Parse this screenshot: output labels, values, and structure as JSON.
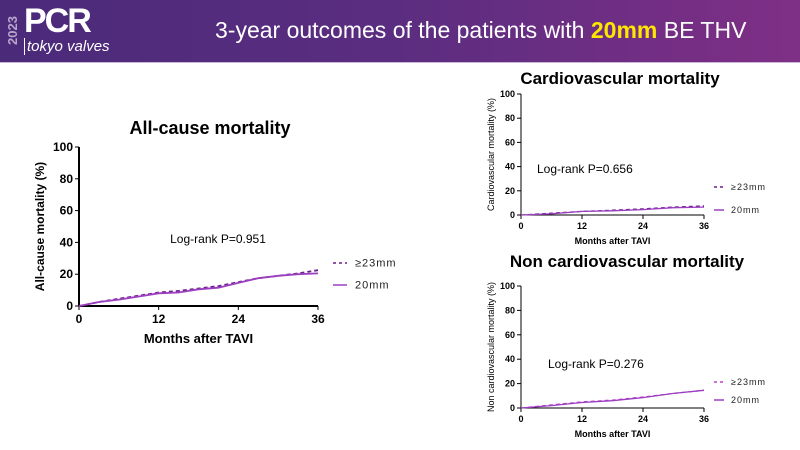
{
  "header": {
    "year": "2023",
    "logo": "PCR",
    "logo_sub": "tokyo valves",
    "title_pre": "3-year outcomes of the patients with ",
    "title_highlight": "20mm",
    "title_post": " BE THV",
    "highlight_color": "#ffe600"
  },
  "chart_data": [
    {
      "type": "line",
      "title": "All-cause mortality",
      "xlabel": "Months after TAVI",
      "ylabel": "All-cause mortality (%)",
      "xlim": [
        0,
        36
      ],
      "ylim": [
        0,
        100
      ],
      "xticks": [
        0,
        12,
        24,
        36
      ],
      "yticks": [
        0,
        20,
        40,
        60,
        80,
        100
      ],
      "annotation": "Log-rank P=0.951",
      "legend": "right",
      "series": [
        {
          "name": "≥23mm",
          "style": "dashed",
          "color": "#6a1f8a",
          "x": [
            0,
            3,
            6,
            9,
            12,
            15,
            18,
            21,
            24,
            27,
            30,
            33,
            36
          ],
          "y": [
            0,
            2.5,
            4.5,
            6.5,
            8.5,
            9.5,
            11,
            12.5,
            15,
            17.5,
            19,
            20.5,
            22.5
          ]
        },
        {
          "name": "20mm",
          "style": "solid",
          "color": "#9b3fc0",
          "x": [
            0,
            3,
            6,
            9,
            12,
            15,
            18,
            21,
            24,
            27,
            30,
            33,
            36
          ],
          "y": [
            0,
            2.5,
            4,
            6,
            8,
            8.5,
            10.5,
            11.5,
            14.5,
            17.5,
            19,
            20,
            20.5
          ]
        }
      ]
    },
    {
      "type": "line",
      "title": "Cardiovascular mortality",
      "xlabel": "Months after TAVI",
      "ylabel": "Cardiovascular mortality (%)",
      "xlim": [
        0,
        36
      ],
      "ylim": [
        0,
        100
      ],
      "xticks": [
        0,
        12,
        24,
        36
      ],
      "yticks": [
        0,
        20,
        40,
        60,
        80,
        100
      ],
      "annotation": "Log-rank P=0.656",
      "legend": "right",
      "series": [
        {
          "name": "≥23mm",
          "style": "dashed",
          "color": "#6a1f8a",
          "x": [
            0,
            6,
            12,
            18,
            24,
            30,
            36
          ],
          "y": [
            0,
            1.5,
            3,
            4,
            5,
            6.5,
            7.5
          ]
        },
        {
          "name": "20mm",
          "style": "solid",
          "color": "#9b3fc0",
          "x": [
            0,
            6,
            12,
            18,
            24,
            30,
            36
          ],
          "y": [
            0,
            1,
            3,
            3.5,
            4.5,
            6,
            6.5
          ]
        }
      ]
    },
    {
      "type": "line",
      "title": "Non cardiovascular mortality",
      "xlabel": "Months after TAVI",
      "ylabel": "Non cardiovascular mortality (%)",
      "xlim": [
        0,
        36
      ],
      "ylim": [
        0,
        100
      ],
      "xticks": [
        0,
        12,
        24,
        36
      ],
      "yticks": [
        0,
        20,
        40,
        60,
        80,
        100
      ],
      "annotation": "Log-rank P=0.276",
      "legend": "right",
      "series": [
        {
          "name": "≥23mm",
          "style": "dashed",
          "color": "#c040d0",
          "x": [
            0,
            6,
            12,
            18,
            24,
            30,
            36
          ],
          "y": [
            0,
            2.5,
            5,
            6.5,
            9,
            12,
            14.5
          ]
        },
        {
          "name": "20mm",
          "style": "solid",
          "color": "#9b3fc0",
          "x": [
            0,
            6,
            12,
            18,
            24,
            30,
            36
          ],
          "y": [
            0,
            2,
            4.5,
            6,
            8.5,
            12,
            14.5
          ]
        }
      ]
    }
  ]
}
